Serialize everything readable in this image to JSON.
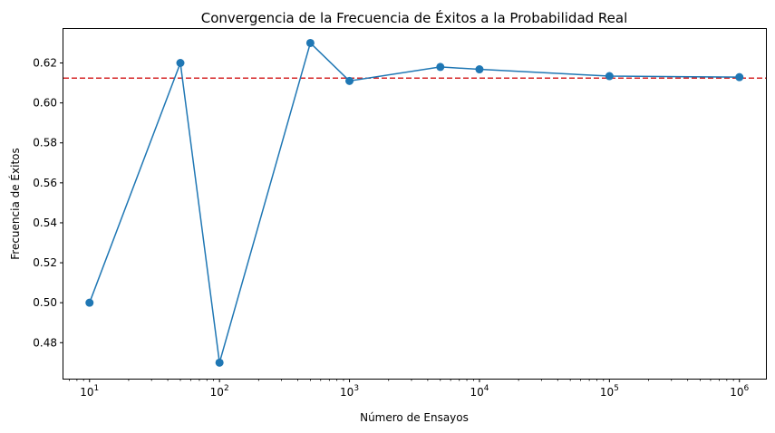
{
  "chart_data": {
    "type": "line",
    "title": "Convergencia de la Frecuencia de Éxitos a la Probabilidad Real",
    "xlabel": "Número de Ensayos",
    "ylabel": "Frecuencia de Éxitos",
    "xscale": "log",
    "xlim": [
      6.3,
      1600000
    ],
    "ylim": [
      0.462,
      0.637
    ],
    "x_ticks": [
      {
        "base": "10",
        "exp": "1",
        "value": 10
      },
      {
        "base": "10",
        "exp": "2",
        "value": 100
      },
      {
        "base": "10",
        "exp": "3",
        "value": 1000
      },
      {
        "base": "10",
        "exp": "4",
        "value": 10000
      },
      {
        "base": "10",
        "exp": "5",
        "value": 100000
      },
      {
        "base": "10",
        "exp": "6",
        "value": 1000000
      }
    ],
    "y_ticks": [
      "0.48",
      "0.50",
      "0.52",
      "0.54",
      "0.56",
      "0.58",
      "0.60",
      "0.62"
    ],
    "grid": false,
    "series": [
      {
        "color": "#1f77b4",
        "marker": "circle",
        "points": [
          {
            "x": 10,
            "y": 0.5
          },
          {
            "x": 50,
            "y": 0.62
          },
          {
            "x": 100,
            "y": 0.47
          },
          {
            "x": 500,
            "y": 0.63
          },
          {
            "x": 1000,
            "y": 0.611
          },
          {
            "x": 5000,
            "y": 0.618
          },
          {
            "x": 10000,
            "y": 0.6168
          },
          {
            "x": 100000,
            "y": 0.6134
          },
          {
            "x": 1000000,
            "y": 0.6129
          }
        ]
      }
    ],
    "reference_line": {
      "y": 0.6124,
      "style": "dashed",
      "color": "#d62728"
    }
  }
}
